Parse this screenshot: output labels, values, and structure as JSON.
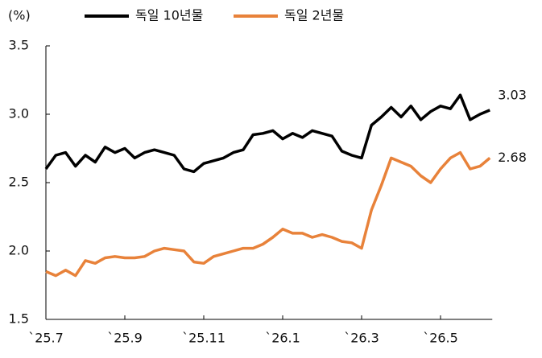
{
  "chart_data": {
    "type": "line",
    "y_label": "(%)",
    "categories": [
      "`25.7",
      null,
      null,
      null,
      null,
      null,
      null,
      null,
      "`25.9",
      null,
      null,
      null,
      null,
      null,
      null,
      null,
      "`25.11",
      null,
      null,
      null,
      null,
      null,
      null,
      null,
      "`26.1",
      null,
      null,
      null,
      null,
      null,
      null,
      null,
      "`26.3",
      null,
      null,
      null,
      null,
      null,
      null,
      null,
      "`26.5",
      null,
      null,
      null,
      null,
      null
    ],
    "series": [
      {
        "name": "독일 10년물",
        "color": "#000000",
        "values": [
          2.6,
          2.7,
          2.72,
          2.62,
          2.7,
          2.65,
          2.76,
          2.72,
          2.75,
          2.68,
          2.72,
          2.74,
          2.72,
          2.7,
          2.6,
          2.58,
          2.64,
          2.66,
          2.68,
          2.72,
          2.74,
          2.85,
          2.86,
          2.88,
          2.82,
          2.86,
          2.83,
          2.88,
          2.86,
          2.84,
          2.73,
          2.7,
          2.68,
          2.92,
          2.98,
          3.05,
          2.98,
          3.06,
          2.96,
          3.02,
          3.06,
          3.04,
          3.14,
          2.96,
          3.0,
          3.03
        ]
      },
      {
        "name": "독일 2년물",
        "color": "#e8823a",
        "values": [
          1.85,
          1.82,
          1.86,
          1.82,
          1.93,
          1.91,
          1.95,
          1.96,
          1.95,
          1.95,
          1.96,
          2.0,
          2.02,
          2.01,
          2.0,
          1.92,
          1.91,
          1.96,
          1.98,
          2.0,
          2.02,
          2.02,
          2.05,
          2.1,
          2.16,
          2.13,
          2.13,
          2.1,
          2.12,
          2.1,
          2.07,
          2.06,
          2.02,
          2.3,
          2.48,
          2.68,
          2.65,
          2.62,
          2.55,
          2.5,
          2.6,
          2.68,
          2.72,
          2.6,
          2.62,
          2.68
        ]
      }
    ],
    "ylim": [
      1.5,
      3.5
    ],
    "yticks": [
      1.5,
      {
        "value": 2.0,
        "label": "2.0"
      },
      2.5,
      {
        "value": 3.0,
        "label": "3.0"
      },
      3.5
    ],
    "grid": false,
    "end_labels": true
  }
}
